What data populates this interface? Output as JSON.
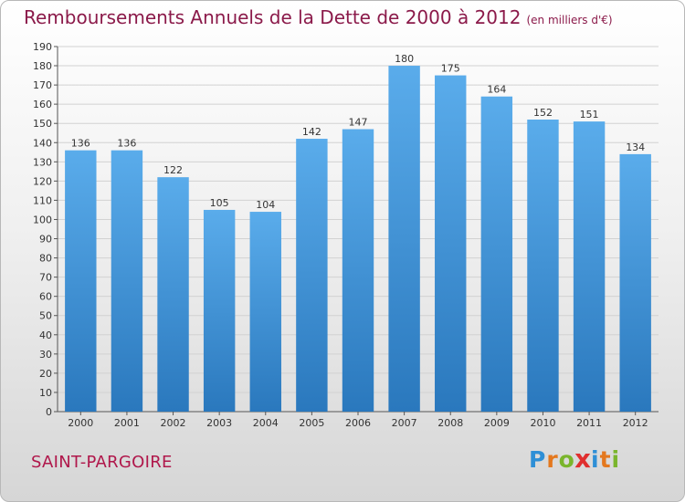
{
  "title": "Remboursements Annuels de la Dette de 2000 à 2012",
  "unit": "(en milliers d'€)",
  "commune": "SAINT-PARGOIRE",
  "brand": {
    "name": "Proxiti",
    "letters": [
      {
        "char": "P",
        "color": "#2e8fd6"
      },
      {
        "char": "r",
        "color": "#e4781e"
      },
      {
        "char": "o",
        "color": "#7ab52c"
      },
      {
        "char": "x",
        "color": "#e02f2f"
      },
      {
        "char": "i",
        "color": "#2e8fd6"
      },
      {
        "char": "t",
        "color": "#e4781e"
      },
      {
        "char": "i",
        "color": "#7ab52c"
      }
    ]
  },
  "chart_data": {
    "type": "bar",
    "categories": [
      "2000",
      "2001",
      "2002",
      "2003",
      "2004",
      "2005",
      "2006",
      "2007",
      "2008",
      "2009",
      "2010",
      "2011",
      "2012"
    ],
    "values": [
      136,
      136,
      122,
      105,
      104,
      142,
      147,
      180,
      175,
      164,
      152,
      151,
      134
    ],
    "title": "Remboursements Annuels de la Dette de 2000 à 2012",
    "xlabel": "",
    "ylabel": "",
    "ylim": [
      0,
      190
    ],
    "yticks": [
      0,
      10,
      20,
      30,
      40,
      50,
      60,
      70,
      80,
      90,
      100,
      110,
      120,
      130,
      140,
      150,
      160,
      170,
      180,
      190
    ],
    "grid": true,
    "bar_color": "#4a9ee0"
  }
}
